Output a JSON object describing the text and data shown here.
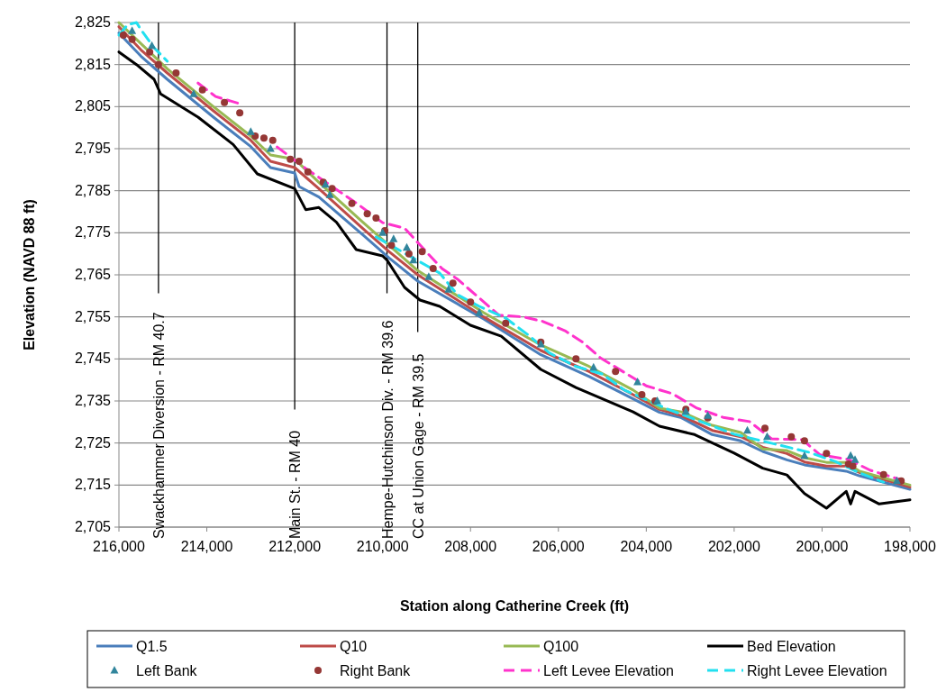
{
  "chart_data": {
    "type": "line",
    "xlabel": "Station along Catherine Creek (ft)",
    "ylabel": "Elevation (NAVD 88 ft)",
    "xlim": [
      216000,
      198000
    ],
    "ylim": [
      2705,
      2825
    ],
    "xticks": [
      {
        "value": 216000,
        "label": "216,000"
      },
      {
        "value": 214000,
        "label": "214,000"
      },
      {
        "value": 212000,
        "label": "212,000"
      },
      {
        "value": 210000,
        "label": "210,000"
      },
      {
        "value": 208000,
        "label": "208,000"
      },
      {
        "value": 206000,
        "label": "206,000"
      },
      {
        "value": 204000,
        "label": "204,000"
      },
      {
        "value": 202000,
        "label": "202,000"
      },
      {
        "value": 200000,
        "label": "200,000"
      },
      {
        "value": 198000,
        "label": "198,000"
      }
    ],
    "yticks": [
      {
        "value": 2705,
        "label": "2,705"
      },
      {
        "value": 2715,
        "label": "2,715"
      },
      {
        "value": 2725,
        "label": "2,725"
      },
      {
        "value": 2735,
        "label": "2,735"
      },
      {
        "value": 2745,
        "label": "2,745"
      },
      {
        "value": 2755,
        "label": "2,755"
      },
      {
        "value": 2765,
        "label": "2,765"
      },
      {
        "value": 2775,
        "label": "2,775"
      },
      {
        "value": 2785,
        "label": "2,785"
      },
      {
        "value": 2795,
        "label": "2,795"
      },
      {
        "value": 2805,
        "label": "2,805"
      },
      {
        "value": 2815,
        "label": "2,815"
      },
      {
        "value": 2825,
        "label": "2,825"
      }
    ],
    "grid": "y",
    "legend": "bottom",
    "ref_lines": [
      {
        "axis": "x",
        "value": 215100,
        "label": "Swackhammer Diversion - RM 40.7"
      },
      {
        "axis": "x",
        "value": 212000,
        "label": "Main St. - RM 40"
      },
      {
        "axis": "x",
        "value": 209900,
        "label": "Hempe-Hutchinson Div. - RM 39.6"
      },
      {
        "axis": "x",
        "value": 209200,
        "label": "CC at Union Gage - RM 39.5"
      }
    ],
    "series": [
      {
        "name": "Q1.5",
        "color": "#4a7ebb",
        "marker": "none",
        "line_style": "solid",
        "x": [
          216000,
          215500,
          214900,
          213850,
          213000,
          212550,
          212000,
          211900,
          211450,
          210450,
          209850,
          209200,
          207700,
          206400,
          205300,
          204300,
          203700,
          203200,
          202500,
          201850,
          201350,
          200800,
          200400,
          199900,
          199450,
          199150,
          198000
        ],
        "values": [
          2822.5,
          2817,
          2811.5,
          2802.5,
          2795.5,
          2790.5,
          2789.2,
          2786,
          2783.5,
          2774.5,
          2769,
          2763.5,
          2754.5,
          2746,
          2740.8,
          2735.5,
          2732.3,
          2731,
          2727,
          2725.5,
          2723,
          2721,
          2719.8,
          2719,
          2718.3,
          2717.2,
          2714
        ]
      },
      {
        "name": "Q10",
        "color": "#be4b48",
        "marker": "none",
        "line_style": "solid",
        "x": [
          216000,
          215500,
          214900,
          213850,
          213000,
          212550,
          212000,
          211450,
          210450,
          209850,
          209200,
          207700,
          206400,
          205300,
          204300,
          203700,
          203200,
          202500,
          201850,
          201350,
          200800,
          200400,
          199900,
          199450,
          199150,
          198000
        ],
        "values": [
          2824,
          2818.5,
          2813,
          2804,
          2797,
          2792,
          2790.5,
          2785.5,
          2776,
          2770.5,
          2765,
          2755,
          2747,
          2742,
          2736.5,
          2733,
          2731.5,
          2728,
          2726.5,
          2724,
          2722.5,
          2720.5,
          2719.5,
          2719.5,
          2718,
          2714.5
        ]
      },
      {
        "name": "Q100",
        "color": "#98b954",
        "marker": "none",
        "line_style": "solid",
        "x": [
          216000,
          215500,
          214900,
          213850,
          213000,
          212550,
          212000,
          211450,
          210450,
          209850,
          209200,
          207700,
          206400,
          205300,
          204300,
          203700,
          203200,
          202500,
          201850,
          201350,
          200800,
          200400,
          199900,
          199450,
          199150,
          198000
        ],
        "values": [
          2825,
          2820,
          2814,
          2805,
          2798,
          2793.5,
          2792.5,
          2787,
          2777.5,
          2772,
          2766,
          2756,
          2748.3,
          2743.2,
          2737.6,
          2733.3,
          2732.4,
          2729.2,
          2727.5,
          2723.6,
          2723.2,
          2721.5,
          2720.4,
          2720.4,
          2718.3,
          2715
        ]
      },
      {
        "name": "Bed Elevation",
        "color": "#000000",
        "marker": "none",
        "line_style": "solid",
        "x": [
          216000,
          215600,
          215200,
          215050,
          214200,
          213400,
          212850,
          212000,
          211750,
          211450,
          211050,
          210600,
          210000,
          209900,
          209500,
          209150,
          208700,
          208000,
          207300,
          206400,
          205600,
          204300,
          203700,
          202900,
          202000,
          201350,
          200800,
          200400,
          199900,
          199450,
          199350,
          199250,
          198700,
          198000
        ],
        "values": [
          2818,
          2815,
          2811.5,
          2808,
          2802.5,
          2796,
          2789,
          2785.5,
          2780.5,
          2781,
          2777.5,
          2771,
          2769.5,
          2768.5,
          2762,
          2759,
          2757.5,
          2753,
          2750.4,
          2742.5,
          2738.2,
          2732.4,
          2729,
          2727,
          2722.6,
          2719,
          2717.4,
          2713,
          2709.5,
          2713.5,
          2710.5,
          2713.5,
          2710.5,
          2711.5
        ]
      },
      {
        "name": "Left Bank",
        "type": "scatter",
        "color": "#31859c",
        "marker": "triangle",
        "x": [
          215700,
          215250,
          214300,
          213000,
          212550,
          211300,
          211200,
          210000,
          209750,
          209450,
          209300,
          208950,
          208500,
          207800,
          206400,
          205200,
          204200,
          203750,
          203100,
          202600,
          201700,
          201250,
          200400,
          199350,
          199250,
          198300
        ],
        "values": [
          2823,
          2819.5,
          2808,
          2799,
          2795,
          2786.5,
          2784,
          2775,
          2773.5,
          2771.5,
          2768.5,
          2764.5,
          2761.5,
          2756,
          2748.5,
          2743,
          2739.5,
          2735,
          2732.5,
          2731.5,
          2728,
          2726.5,
          2722,
          2722,
          2721,
          2716
        ]
      },
      {
        "name": "Right Bank",
        "type": "scatter",
        "color": "#953735",
        "marker": "circle",
        "x": [
          215900,
          215700,
          215300,
          215100,
          214700,
          214100,
          213600,
          213250,
          212900,
          212700,
          212500,
          212100,
          211900,
          211700,
          211350,
          211150,
          210700,
          210350,
          210150,
          209950,
          209800,
          209400,
          209100,
          208850,
          208400,
          208000,
          207200,
          206400,
          205600,
          204700,
          204100,
          203800,
          203100,
          202600,
          201300,
          200700,
          200400,
          199900,
          199400,
          199300,
          198600,
          198200
        ],
        "values": [
          2822,
          2821,
          2818,
          2815,
          2813,
          2809,
          2806,
          2803.5,
          2798,
          2797.5,
          2797,
          2792.5,
          2792,
          2789.5,
          2787,
          2785.5,
          2782,
          2779.5,
          2778.5,
          2775.5,
          2772,
          2770,
          2770.5,
          2766.5,
          2763,
          2758.5,
          2753.5,
          2749,
          2745,
          2742,
          2736.5,
          2735,
          2733,
          2731,
          2728.5,
          2726.5,
          2725.5,
          2722.5,
          2720,
          2719.5,
          2717.5,
          2716
        ]
      },
      {
        "name": "Left Levee Elevation",
        "color": "#ff33cc",
        "marker": "none",
        "line_style": "dashed",
        "x": [
          214200,
          213800,
          213250,
          212800,
          212400,
          211750,
          211300,
          210550,
          210000,
          209500,
          209000,
          208650,
          208300,
          207350,
          206800,
          206350,
          205850,
          205450,
          205050,
          204000,
          203400,
          202850,
          202250,
          201650,
          201150,
          200450,
          200050,
          199400,
          198900,
          198250
        ],
        "values": [
          2810.6,
          2807.4,
          2805.7,
          null,
          2795.4,
          2790.3,
          2787.1,
          2781.7,
          2777.4,
          2776.1,
          2770.4,
          2766.5,
          2764,
          2755.4,
          2755,
          2753.9,
          2751.7,
          2749,
          2745.3,
          2738.6,
          2736.7,
          2733.3,
          2731.1,
          2730.1,
          2726,
          2725.8,
          2722.2,
          2721.1,
          2718.5,
          2716.4
        ]
      },
      {
        "name": "Right Levee Elevation",
        "color": "#22e0f0",
        "marker": "none",
        "line_style": "dashed",
        "x": [
          216000,
          215800,
          215600,
          215500,
          215200,
          214900,
          212500,
          210150,
          208700,
          208300,
          207800,
          207200,
          206650,
          206200,
          205600,
          205000,
          204500,
          203500,
          202000,
          200300,
          199700,
          199150,
          198600
        ],
        "values": [
          2822,
          2824.5,
          2825,
          2823.3,
          2819,
          2815.8,
          null,
          2774,
          2765.4,
          2760.3,
          2757.5,
          2754.7,
          2750.4,
          2746.4,
          2743.2,
          2741.4,
          2737.6,
          2733,
          2727.1,
          2722.8,
          2720.6,
          2717.9,
          2715.7
        ]
      }
    ]
  }
}
